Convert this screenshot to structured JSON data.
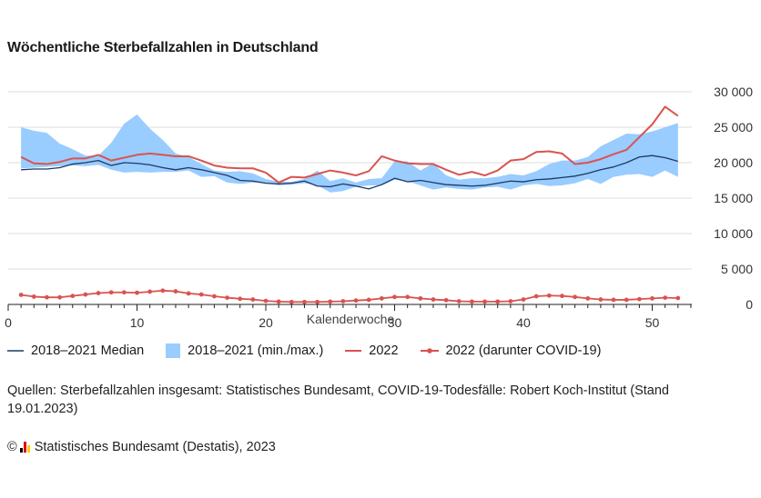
{
  "chart_data": {
    "type": "line",
    "title": "Wöchentliche Sterbefallzahlen in Deutschland",
    "xlabel": "Kalenderwoche",
    "ylabel": "",
    "xlim": [
      0,
      53
    ],
    "ylim": [
      0,
      30000
    ],
    "x_ticks": [
      0,
      10,
      20,
      30,
      40,
      50
    ],
    "x_tick_labels": [
      "0",
      "10",
      "20",
      "30",
      "40",
      "50"
    ],
    "y_ticks": [
      0,
      5000,
      10000,
      15000,
      20000,
      25000,
      30000
    ],
    "y_tick_labels": [
      "0",
      "5 000",
      "10 000",
      "15 000",
      "20 000",
      "25 000",
      "30 000"
    ],
    "grid": true,
    "weeks": [
      1,
      2,
      3,
      4,
      5,
      6,
      7,
      8,
      9,
      10,
      11,
      12,
      13,
      14,
      15,
      16,
      17,
      18,
      19,
      20,
      21,
      22,
      23,
      24,
      25,
      26,
      27,
      28,
      29,
      30,
      31,
      32,
      33,
      34,
      35,
      36,
      37,
      38,
      39,
      40,
      41,
      42,
      43,
      44,
      45,
      46,
      47,
      48,
      49,
      50,
      51,
      52
    ],
    "series": [
      {
        "name": "2018–2021 (min./max.)",
        "type": "band",
        "color": "#99ccff",
        "min": [
          19200,
          19300,
          19400,
          19500,
          19600,
          19500,
          19700,
          19000,
          18600,
          18700,
          18600,
          18700,
          18700,
          18900,
          18000,
          18100,
          17200,
          17000,
          17200,
          17100,
          16800,
          16900,
          17100,
          16800,
          15800,
          16000,
          16600,
          16800,
          16800,
          17600,
          17400,
          16800,
          16200,
          16500,
          16300,
          16200,
          16500,
          16600,
          16200,
          16800,
          17000,
          16700,
          16800,
          17100,
          17700,
          17000,
          18000,
          18300,
          18400,
          18000,
          18900,
          18000
        ],
        "max": [
          25000,
          24500,
          24200,
          22700,
          21900,
          21000,
          21000,
          22800,
          25500,
          26800,
          24800,
          23200,
          21300,
          20800,
          19800,
          18900,
          18700,
          18800,
          18500,
          17700,
          17300,
          17300,
          17700,
          18900,
          17400,
          17800,
          17200,
          17700,
          17800,
          20200,
          20200,
          18900,
          19900,
          18200,
          17600,
          17800,
          17800,
          18000,
          18400,
          18200,
          18800,
          19800,
          20300,
          20300,
          20800,
          22300,
          23200,
          24100,
          24000,
          24400,
          25000,
          25600
        ]
      },
      {
        "name": "2018–2021 Median",
        "type": "line",
        "color": "#1f3864",
        "values": [
          19000,
          19100,
          19100,
          19300,
          19800,
          20000,
          20300,
          19600,
          20000,
          19900,
          19700,
          19300,
          19000,
          19300,
          19000,
          18600,
          18200,
          17500,
          17400,
          17100,
          17000,
          17100,
          17400,
          16700,
          16600,
          17000,
          16700,
          16300,
          16900,
          17800,
          17300,
          17500,
          17200,
          16900,
          16800,
          16700,
          16800,
          17100,
          17400,
          17300,
          17600,
          17700,
          17900,
          18100,
          18500,
          19000,
          19400,
          20000,
          20800,
          21000,
          20700,
          20200
        ]
      },
      {
        "name": "2022",
        "type": "line",
        "color": "#d9534f",
        "values": [
          20800,
          19900,
          19800,
          20100,
          20600,
          20600,
          21100,
          20300,
          20700,
          21100,
          21300,
          21100,
          20900,
          20900,
          20300,
          19600,
          19300,
          19200,
          19200,
          18600,
          17200,
          18000,
          17900,
          18400,
          18900,
          18600,
          18200,
          18800,
          20900,
          20300,
          19900,
          19800,
          19800,
          19000,
          18300,
          18700,
          18200,
          18900,
          20300,
          20500,
          21500,
          21600,
          21300,
          19800,
          20000,
          20500,
          21200,
          21800,
          23600,
          25400,
          27900,
          26600
        ]
      },
      {
        "name": "2022 (darunter COVID-19)",
        "type": "line-markers",
        "color": "#d9534f",
        "values": [
          1350,
          1100,
          1000,
          1000,
          1200,
          1400,
          1600,
          1700,
          1700,
          1650,
          1800,
          1950,
          1850,
          1550,
          1400,
          1150,
          950,
          800,
          700,
          500,
          400,
          350,
          350,
          350,
          400,
          450,
          550,
          650,
          850,
          1050,
          1050,
          850,
          700,
          600,
          450,
          400,
          400,
          400,
          450,
          700,
          1150,
          1250,
          1200,
          1050,
          850,
          700,
          650,
          650,
          750,
          850,
          950,
          900
        ]
      }
    ]
  },
  "legend": {
    "median": "2018–2021 Median",
    "band": "2018–2021 (min./max.)",
    "y2022": "2022",
    "covid": "2022 (darunter COVID-19)"
  },
  "sources_text": "Quellen: Sterbefallzahlen insgesamt: Statistisches Bundesamt, COVID-19-Todesfälle: Robert Koch-Institut (Stand 19.01.2023)",
  "copyright_symbol": "©",
  "copyright_text": "Statistisches Bundesamt (Destatis), 2023",
  "logo_colors": [
    "#000000",
    "#dd0000",
    "#ffcc00"
  ]
}
